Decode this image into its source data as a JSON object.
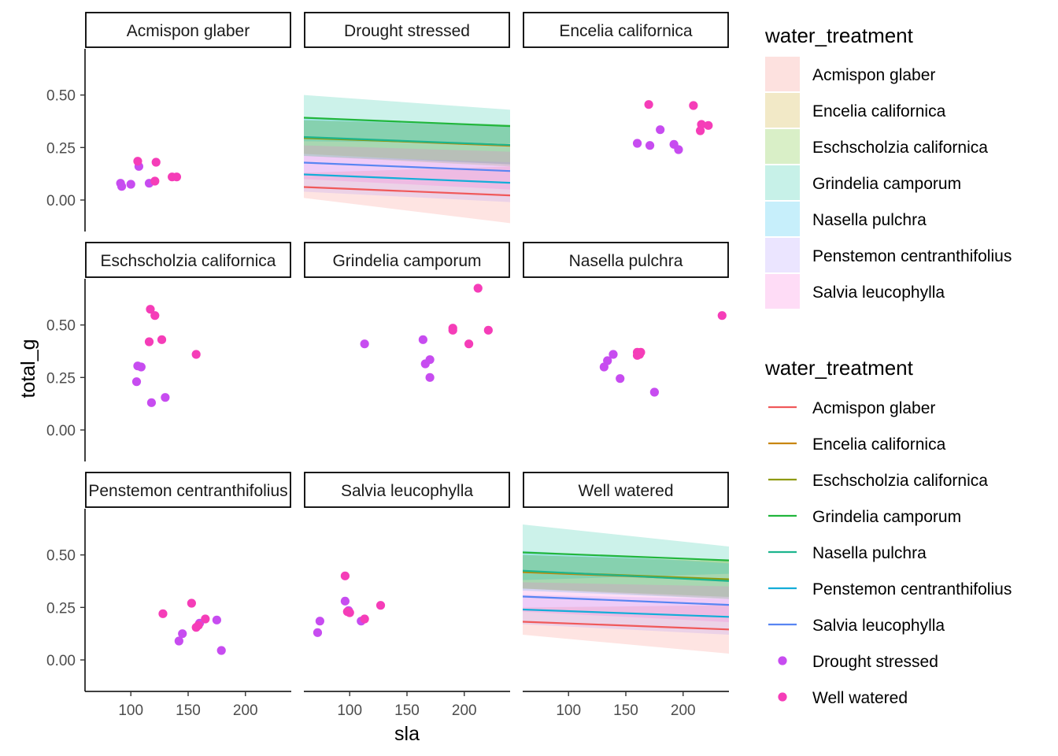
{
  "chart_data": {
    "type": "scatter",
    "facet_by": "species / water_treatment",
    "xlabel": "sla",
    "ylabel": "total_g",
    "xlim": [
      60,
      240
    ],
    "ylim": [
      -0.15,
      0.72
    ],
    "x_ticks": [
      100,
      150,
      200
    ],
    "y_ticks": [
      0.0,
      0.25,
      0.5
    ],
    "x_tick_labels": [
      "100",
      "150",
      "200"
    ],
    "y_tick_labels": [
      "0.00",
      "0.25",
      "0.50"
    ],
    "grid": false,
    "legend_position": "right",
    "fill_legend": {
      "title": "water_treatment",
      "entries": [
        {
          "name": "Acmispon glaber",
          "color": "#F8766D"
        },
        {
          "name": "Encelia californica",
          "color": "#C49A00"
        },
        {
          "name": "Eschscholzia californica",
          "color": "#53B400"
        },
        {
          "name": "Grindelia camporum",
          "color": "#00C094"
        },
        {
          "name": "Nasella pulchra",
          "color": "#00B6EB"
        },
        {
          "name": "Penstemon centranthifolius",
          "color": "#A58AFF"
        },
        {
          "name": "Salvia leucophylla",
          "color": "#FB61D7"
        }
      ]
    },
    "line_legend": {
      "title": "water_treatment",
      "entries": [
        {
          "name": "Acmispon glaber",
          "color": "#F0595A",
          "kind": "line"
        },
        {
          "name": "Encelia californica",
          "color": "#C8860F",
          "kind": "line"
        },
        {
          "name": "Eschscholzia californica",
          "color": "#8E9A0E",
          "kind": "line"
        },
        {
          "name": "Grindelia camporum",
          "color": "#22B63C",
          "kind": "line"
        },
        {
          "name": "Nasella pulchra",
          "color": "#1DB58E",
          "kind": "line"
        },
        {
          "name": "Penstemon centranthifolius",
          "color": "#14ADD8",
          "kind": "line"
        },
        {
          "name": "Salvia leucophylla",
          "color": "#5885F2",
          "kind": "line"
        },
        {
          "name": "Drought stressed",
          "color": "#C74CF0",
          "kind": "point"
        },
        {
          "name": "Well watered",
          "color": "#F53DB8",
          "kind": "point"
        }
      ]
    },
    "panels": [
      {
        "title": "Acmispon glaber",
        "row": 0,
        "col": 0,
        "points": [
          {
            "x": 91,
            "y": 0.08,
            "group": "Drought stressed"
          },
          {
            "x": 92,
            "y": 0.065,
            "group": "Drought stressed"
          },
          {
            "x": 100,
            "y": 0.075,
            "group": "Drought stressed"
          },
          {
            "x": 107,
            "y": 0.16,
            "group": "Drought stressed"
          },
          {
            "x": 116,
            "y": 0.08,
            "group": "Drought stressed"
          },
          {
            "x": 106,
            "y": 0.185,
            "group": "Well watered"
          },
          {
            "x": 122,
            "y": 0.18,
            "group": "Well watered"
          },
          {
            "x": 121,
            "y": 0.09,
            "group": "Well watered"
          },
          {
            "x": 136,
            "y": 0.11,
            "group": "Well watered"
          },
          {
            "x": 140,
            "y": 0.11,
            "group": "Well watered"
          }
        ]
      },
      {
        "title": "Drought stressed",
        "row": 0,
        "col": 1,
        "lines": [
          {
            "species": "Acmispon glaber",
            "y_start": 0.062,
            "y_end": 0.022,
            "lo_start": 0.01,
            "lo_end": -0.11,
            "hi_start": 0.13,
            "hi_end": 0.16
          },
          {
            "species": "Encelia californica",
            "y_start": 0.298,
            "y_end": 0.258,
            "lo_start": 0.22,
            "lo_end": 0.17,
            "hi_start": 0.38,
            "hi_end": 0.35
          },
          {
            "species": "Eschscholzia californica",
            "y_start": 0.295,
            "y_end": 0.262,
            "lo_start": 0.21,
            "lo_end": 0.16,
            "hi_start": 0.38,
            "hi_end": 0.36
          },
          {
            "species": "Grindelia camporum",
            "y_start": 0.392,
            "y_end": 0.352,
            "lo_start": 0.28,
            "lo_end": 0.27,
            "hi_start": 0.5,
            "hi_end": 0.43
          },
          {
            "species": "Nasella pulchra",
            "y_start": 0.3,
            "y_end": 0.262,
            "lo_start": 0.21,
            "lo_end": 0.17,
            "hi_start": 0.39,
            "hi_end": 0.35
          },
          {
            "species": "Penstemon centranthifolius",
            "y_start": 0.122,
            "y_end": 0.082,
            "lo_start": 0.04,
            "lo_end": -0.01,
            "hi_start": 0.21,
            "hi_end": 0.18
          },
          {
            "species": "Salvia leucophylla",
            "y_start": 0.178,
            "y_end": 0.138,
            "lo_start": 0.1,
            "lo_end": 0.05,
            "hi_start": 0.26,
            "hi_end": 0.23
          }
        ]
      },
      {
        "title": "Encelia californica",
        "row": 0,
        "col": 2,
        "points": [
          {
            "x": 160,
            "y": 0.27,
            "group": "Drought stressed"
          },
          {
            "x": 171,
            "y": 0.26,
            "group": "Drought stressed"
          },
          {
            "x": 180,
            "y": 0.335,
            "group": "Drought stressed"
          },
          {
            "x": 192,
            "y": 0.265,
            "group": "Drought stressed"
          },
          {
            "x": 196,
            "y": 0.24,
            "group": "Drought stressed"
          },
          {
            "x": 170,
            "y": 0.455,
            "group": "Well watered"
          },
          {
            "x": 209,
            "y": 0.45,
            "group": "Well watered"
          },
          {
            "x": 216,
            "y": 0.36,
            "group": "Well watered"
          },
          {
            "x": 215,
            "y": 0.33,
            "group": "Well watered"
          },
          {
            "x": 222,
            "y": 0.355,
            "group": "Well watered"
          }
        ]
      },
      {
        "title": "Eschscholzia californica",
        "row": 1,
        "col": 0,
        "points": [
          {
            "x": 105,
            "y": 0.23,
            "group": "Drought stressed"
          },
          {
            "x": 106,
            "y": 0.305,
            "group": "Drought stressed"
          },
          {
            "x": 109,
            "y": 0.3,
            "group": "Drought stressed"
          },
          {
            "x": 118,
            "y": 0.13,
            "group": "Drought stressed"
          },
          {
            "x": 130,
            "y": 0.155,
            "group": "Drought stressed"
          },
          {
            "x": 117,
            "y": 0.575,
            "group": "Well watered"
          },
          {
            "x": 121,
            "y": 0.545,
            "group": "Well watered"
          },
          {
            "x": 116,
            "y": 0.42,
            "group": "Well watered"
          },
          {
            "x": 127,
            "y": 0.43,
            "group": "Well watered"
          },
          {
            "x": 157,
            "y": 0.36,
            "group": "Well watered"
          }
        ]
      },
      {
        "title": "Grindelia camporum",
        "row": 1,
        "col": 1,
        "points": [
          {
            "x": 113,
            "y": 0.41,
            "group": "Drought stressed"
          },
          {
            "x": 164,
            "y": 0.43,
            "group": "Drought stressed"
          },
          {
            "x": 166,
            "y": 0.315,
            "group": "Drought stressed"
          },
          {
            "x": 170,
            "y": 0.335,
            "group": "Drought stressed"
          },
          {
            "x": 170,
            "y": 0.25,
            "group": "Drought stressed"
          },
          {
            "x": 212,
            "y": 0.675,
            "group": "Well watered"
          },
          {
            "x": 190,
            "y": 0.485,
            "group": "Well watered"
          },
          {
            "x": 190,
            "y": 0.475,
            "group": "Well watered"
          },
          {
            "x": 221,
            "y": 0.475,
            "group": "Well watered"
          },
          {
            "x": 204,
            "y": 0.41,
            "group": "Well watered"
          }
        ]
      },
      {
        "title": "Nasella pulchra",
        "row": 1,
        "col": 2,
        "points": [
          {
            "x": 131,
            "y": 0.3,
            "group": "Drought stressed"
          },
          {
            "x": 134,
            "y": 0.33,
            "group": "Drought stressed"
          },
          {
            "x": 139,
            "y": 0.36,
            "group": "Drought stressed"
          },
          {
            "x": 145,
            "y": 0.245,
            "group": "Drought stressed"
          },
          {
            "x": 175,
            "y": 0.18,
            "group": "Drought stressed"
          },
          {
            "x": 160,
            "y": 0.37,
            "group": "Well watered"
          },
          {
            "x": 163,
            "y": 0.37,
            "group": "Well watered"
          },
          {
            "x": 160,
            "y": 0.355,
            "group": "Well watered"
          },
          {
            "x": 162,
            "y": 0.36,
            "group": "Well watered"
          },
          {
            "x": 234,
            "y": 0.545,
            "group": "Well watered"
          }
        ]
      },
      {
        "title": "Penstemon centranthifolius",
        "row": 2,
        "col": 0,
        "points": [
          {
            "x": 142,
            "y": 0.09,
            "group": "Drought stressed"
          },
          {
            "x": 145,
            "y": 0.125,
            "group": "Drought stressed"
          },
          {
            "x": 160,
            "y": 0.175,
            "group": "Drought stressed"
          },
          {
            "x": 175,
            "y": 0.19,
            "group": "Drought stressed"
          },
          {
            "x": 179,
            "y": 0.045,
            "group": "Drought stressed"
          },
          {
            "x": 128,
            "y": 0.22,
            "group": "Well watered"
          },
          {
            "x": 153,
            "y": 0.27,
            "group": "Well watered"
          },
          {
            "x": 157,
            "y": 0.155,
            "group": "Well watered"
          },
          {
            "x": 159,
            "y": 0.165,
            "group": "Well watered"
          },
          {
            "x": 165,
            "y": 0.195,
            "group": "Well watered"
          }
        ]
      },
      {
        "title": "Salvia leucophylla",
        "row": 2,
        "col": 1,
        "points": [
          {
            "x": 72,
            "y": 0.13,
            "group": "Drought stressed"
          },
          {
            "x": 74,
            "y": 0.185,
            "group": "Drought stressed"
          },
          {
            "x": 96,
            "y": 0.28,
            "group": "Drought stressed"
          },
          {
            "x": 99,
            "y": 0.235,
            "group": "Drought stressed"
          },
          {
            "x": 110,
            "y": 0.185,
            "group": "Drought stressed"
          },
          {
            "x": 96,
            "y": 0.4,
            "group": "Well watered"
          },
          {
            "x": 98,
            "y": 0.23,
            "group": "Well watered"
          },
          {
            "x": 100,
            "y": 0.225,
            "group": "Well watered"
          },
          {
            "x": 113,
            "y": 0.195,
            "group": "Well watered"
          },
          {
            "x": 127,
            "y": 0.26,
            "group": "Well watered"
          }
        ]
      },
      {
        "title": "Well watered",
        "row": 2,
        "col": 2,
        "lines": [
          {
            "species": "Acmispon glaber",
            "y_start": 0.182,
            "y_end": 0.145,
            "lo_start": 0.12,
            "lo_end": 0.03,
            "hi_start": 0.25,
            "hi_end": 0.26
          },
          {
            "species": "Encelia californica",
            "y_start": 0.418,
            "y_end": 0.38,
            "lo_start": 0.34,
            "lo_end": 0.29,
            "hi_start": 0.5,
            "hi_end": 0.47
          },
          {
            "species": "Eschscholzia californica",
            "y_start": 0.422,
            "y_end": 0.384,
            "lo_start": 0.34,
            "lo_end": 0.3,
            "hi_start": 0.5,
            "hi_end": 0.47
          },
          {
            "species": "Grindelia camporum",
            "y_start": 0.512,
            "y_end": 0.474,
            "lo_start": 0.38,
            "lo_end": 0.41,
            "hi_start": 0.645,
            "hi_end": 0.54
          },
          {
            "species": "Nasella pulchra",
            "y_start": 0.425,
            "y_end": 0.376,
            "lo_start": 0.33,
            "lo_end": 0.29,
            "hi_start": 0.52,
            "hi_end": 0.46
          },
          {
            "species": "Penstemon centranthifolius",
            "y_start": 0.24,
            "y_end": 0.205,
            "lo_start": 0.17,
            "lo_end": 0.12,
            "hi_start": 0.31,
            "hi_end": 0.29
          },
          {
            "species": "Salvia leucophylla",
            "y_start": 0.302,
            "y_end": 0.262,
            "lo_start": 0.23,
            "lo_end": 0.18,
            "hi_start": 0.37,
            "hi_end": 0.35
          }
        ]
      }
    ]
  }
}
